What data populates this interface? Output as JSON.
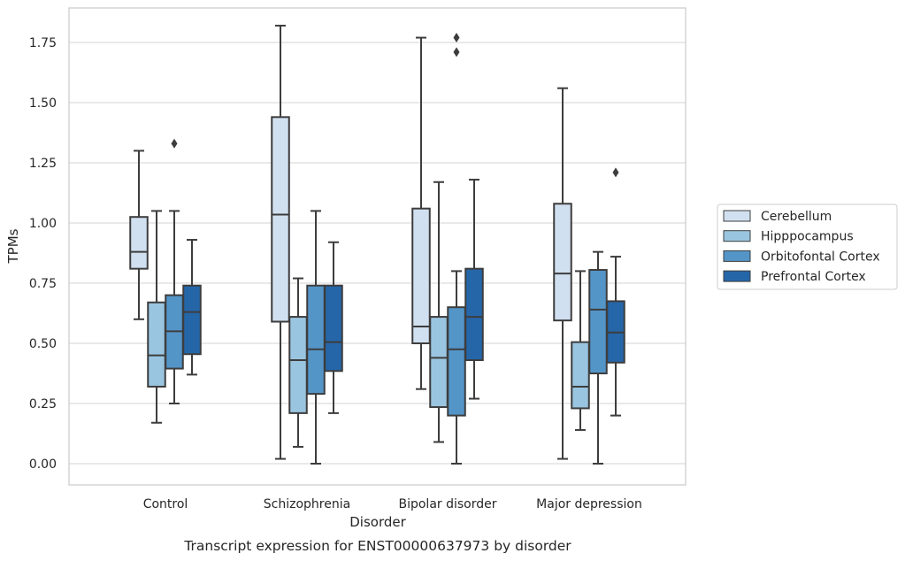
{
  "chart_data": {
    "type": "box",
    "xlabel": "Disorder",
    "ylabel": "TPMs",
    "caption": "Transcript expression for ENST00000637973 by disorder",
    "ylim": [
      -0.09,
      1.92
    ],
    "yticks": [
      0.0,
      0.25,
      0.5,
      0.75,
      1.0,
      1.25,
      1.5,
      1.75
    ],
    "ytick_labels": [
      "0.00",
      "0.25",
      "0.50",
      "0.75",
      "1.00",
      "1.25",
      "1.50",
      "1.75"
    ],
    "grid": true,
    "legend_position": "right",
    "categories": [
      "Control",
      "Schizophrenia",
      "Bipolar disorder",
      "Major depression"
    ],
    "series": [
      {
        "name": "Cerebellum",
        "color": "#d1e0f0",
        "boxes": [
          {
            "whisker_low": 0.6,
            "q1": 0.81,
            "median": 0.88,
            "q3": 1.025,
            "whisker_high": 1.3,
            "outliers": []
          },
          {
            "whisker_low": 0.02,
            "q1": 0.59,
            "median": 1.035,
            "q3": 1.44,
            "whisker_high": 1.82,
            "outliers": []
          },
          {
            "whisker_low": 0.31,
            "q1": 0.5,
            "median": 0.57,
            "q3": 1.06,
            "whisker_high": 1.77,
            "outliers": []
          },
          {
            "whisker_low": 0.02,
            "q1": 0.595,
            "median": 0.79,
            "q3": 1.08,
            "whisker_high": 1.56,
            "outliers": []
          }
        ]
      },
      {
        "name": "Hipppocampus",
        "color": "#9ac5e0",
        "boxes": [
          {
            "whisker_low": 0.17,
            "q1": 0.32,
            "median": 0.45,
            "q3": 0.67,
            "whisker_high": 1.05,
            "outliers": []
          },
          {
            "whisker_low": 0.07,
            "q1": 0.21,
            "median": 0.43,
            "q3": 0.61,
            "whisker_high": 0.77,
            "outliers": []
          },
          {
            "whisker_low": 0.09,
            "q1": 0.235,
            "median": 0.44,
            "q3": 0.61,
            "whisker_high": 1.17,
            "outliers": []
          },
          {
            "whisker_low": 0.14,
            "q1": 0.23,
            "median": 0.32,
            "q3": 0.505,
            "whisker_high": 0.8,
            "outliers": []
          }
        ]
      },
      {
        "name": "Orbitofontal Cortex",
        "color": "#5495c8",
        "boxes": [
          {
            "whisker_low": 0.25,
            "q1": 0.395,
            "median": 0.55,
            "q3": 0.7,
            "whisker_high": 1.05,
            "outliers": [
              1.33
            ]
          },
          {
            "whisker_low": 0.0,
            "q1": 0.29,
            "median": 0.475,
            "q3": 0.74,
            "whisker_high": 1.05,
            "outliers": []
          },
          {
            "whisker_low": 0.0,
            "q1": 0.2,
            "median": 0.475,
            "q3": 0.65,
            "whisker_high": 0.8,
            "outliers": [
              1.71,
              1.77
            ]
          },
          {
            "whisker_low": 0.0,
            "q1": 0.375,
            "median": 0.64,
            "q3": 0.805,
            "whisker_high": 0.88,
            "outliers": []
          }
        ]
      },
      {
        "name": "Prefrontal Cortex",
        "color": "#2566a9",
        "boxes": [
          {
            "whisker_low": 0.37,
            "q1": 0.455,
            "median": 0.63,
            "q3": 0.74,
            "whisker_high": 0.93,
            "outliers": []
          },
          {
            "whisker_low": 0.21,
            "q1": 0.385,
            "median": 0.505,
            "q3": 0.74,
            "whisker_high": 0.92,
            "outliers": []
          },
          {
            "whisker_low": 0.27,
            "q1": 0.43,
            "median": 0.61,
            "q3": 0.81,
            "whisker_high": 1.18,
            "outliers": []
          },
          {
            "whisker_low": 0.2,
            "q1": 0.42,
            "median": 0.545,
            "q3": 0.675,
            "whisker_high": 0.86,
            "outliers": [
              1.21
            ]
          }
        ]
      }
    ]
  }
}
